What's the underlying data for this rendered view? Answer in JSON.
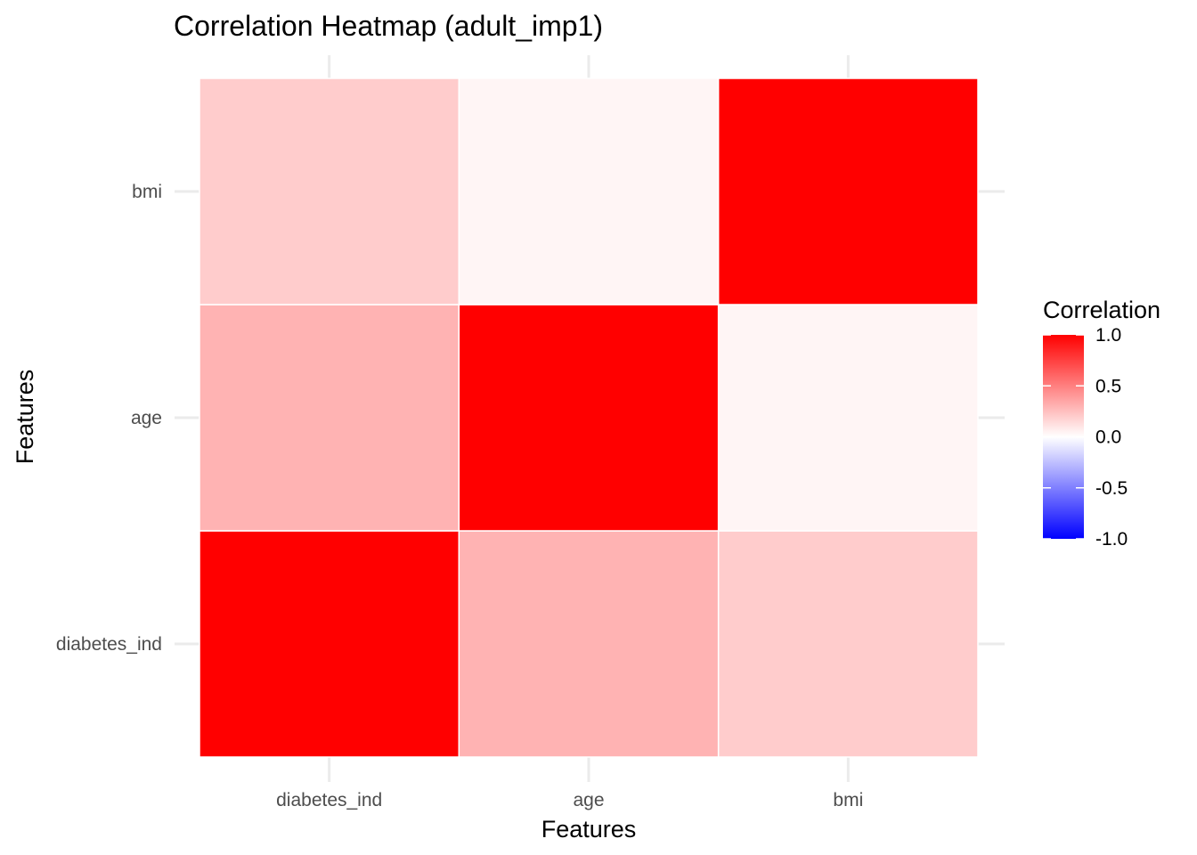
{
  "chart_data": {
    "type": "heatmap",
    "title": "Correlation Heatmap (adult_imp1)",
    "xlabel": "Features",
    "ylabel": "Features",
    "x_categories": [
      "diabetes_ind",
      "age",
      "bmi"
    ],
    "y_categories": [
      "diabetes_ind",
      "age",
      "bmi"
    ],
    "matrix": [
      [
        1.0,
        0.3,
        0.2
      ],
      [
        0.3,
        1.0,
        0.04
      ],
      [
        0.2,
        0.04,
        1.0
      ]
    ],
    "color_scale": {
      "low": "#0000FF",
      "mid": "#FFFFFF",
      "high": "#FF0000",
      "limits": [
        -1.0,
        1.0
      ],
      "midpoint": 0.0
    },
    "legend": {
      "title": "Correlation",
      "breaks": [
        1.0,
        0.5,
        0.0,
        -0.5,
        -1.0
      ],
      "labels": [
        "1.0",
        "0.5",
        "0.0",
        "-0.5",
        "-1.0"
      ],
      "position": "right"
    },
    "grid": true
  }
}
